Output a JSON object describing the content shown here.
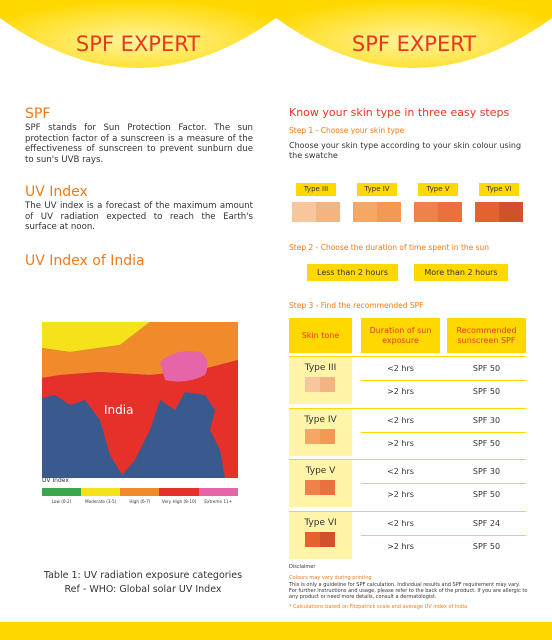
{
  "left": {
    "header": "SPF EXPERT",
    "sections": [
      {
        "heading": "SPF",
        "text": "SPF stands for Sun Protection Factor. The sun protection factor of a sunscreen is a measure of the effectiveness of sunscreen to prevent sunburn due to sun's UVB rays."
      },
      {
        "heading": "UV Index",
        "text": "The UV index is a forecast of the maximum amount of UV radiation expected to reach the Earth's surface at noon."
      }
    ],
    "map_heading": "UV Index of India",
    "map": {
      "label": "India",
      "legend_title": "UV Index",
      "legend": [
        "Low (0-2)",
        "Moderate (3-5)",
        "High (6-7)",
        "Very High (8-10)",
        "Extreme 11+"
      ]
    },
    "caption": [
      "Table 1: UV radiation exposure categories",
      "Ref - WHO: Global solar UV Index"
    ]
  },
  "right": {
    "header": "SPF EXPERT",
    "title": "Know your skin type in three easy steps",
    "step1": {
      "heading": "Step 1 - Choose your skin type",
      "text": "Choose your skin type according to your skin colour using the swatche",
      "types": [
        "Type III",
        "Type IV",
        "Type V",
        "Type VI"
      ]
    },
    "step2": {
      "heading": "Step 2 - Choose the duration of time spent in the sun",
      "options": [
        "Less than 2 hours",
        "More than 2 hours"
      ]
    },
    "step3": {
      "heading": "Step 3 - Find the recommended SPF",
      "columns": [
        "Skin tone",
        "Duration of sun exposure",
        "Recommended sunscreen SPF"
      ],
      "rows": [
        {
          "type": "Type III",
          "entries": [
            [
              "<2 hrs",
              "SPF 50"
            ],
            [
              ">2 hrs",
              "SPF 50"
            ]
          ]
        },
        {
          "type": "Type IV",
          "entries": [
            [
              "<2 hrs",
              "SPF 30"
            ],
            [
              ">2 hrs",
              "SPF 50"
            ]
          ]
        },
        {
          "type": "Type V",
          "entries": [
            [
              "<2 hrs",
              "SPF 30"
            ],
            [
              ">2 hrs",
              "SPF 50"
            ]
          ]
        },
        {
          "type": "Type VI",
          "entries": [
            [
              "<2 hrs",
              "SPF 24"
            ],
            [
              ">2 hrs",
              "SPF 50"
            ]
          ]
        }
      ]
    },
    "disclaimer": {
      "title": "Disclaimer",
      "note": "Colours may vary during printing",
      "text": "This is only a guideline for SPF calculation. Individual results and SPF requirement may vary. For further instructions and usage, please refer to the back of the product. If you are allergic to any product or need more details, consult a dermatologist.",
      "footnote": "* Calculations based on Fitzpatrick scale and average UV index of India"
    }
  }
}
